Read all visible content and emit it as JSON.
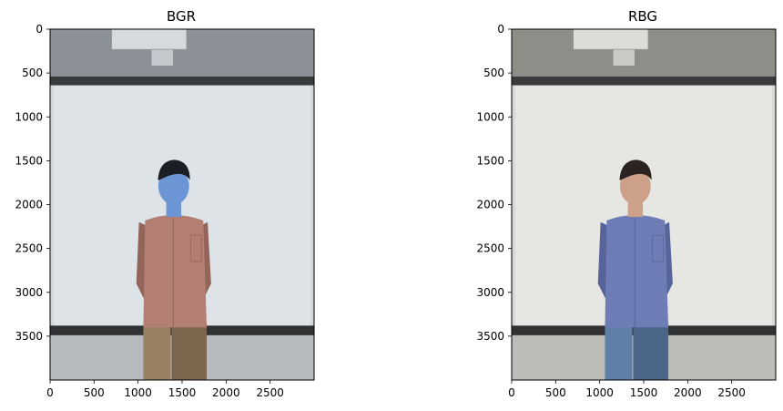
{
  "panels": [
    {
      "title": "BGR",
      "variant": "bgr",
      "x_ticks": [
        "0",
        "500",
        "1000",
        "1500",
        "2000",
        "2500"
      ],
      "y_ticks": [
        "0",
        "500",
        "1000",
        "1500",
        "2000",
        "2500",
        "3000",
        "3500"
      ],
      "colors": {
        "face": "#6c95d6",
        "hair": "#1c1e26",
        "shirt": "#b27f72",
        "shirt_shadow": "#93655a",
        "pants": "#9a8063",
        "pants_shadow": "#7d664e"
      }
    },
    {
      "title": "RBG",
      "variant": "rbg",
      "x_ticks": [
        "0",
        "500",
        "1000",
        "1500",
        "2000",
        "2500"
      ],
      "y_ticks": [
        "0",
        "500",
        "1000",
        "1500",
        "2000",
        "2500",
        "3000",
        "3500"
      ],
      "colors": {
        "face": "#cda08a",
        "hair": "#2a2320",
        "shirt": "#6e7db5",
        "shirt_shadow": "#56649a",
        "pants": "#5f7fa6",
        "pants_shadow": "#4a6688"
      }
    }
  ],
  "image_extent": {
    "width": 3000,
    "height": 4000
  }
}
